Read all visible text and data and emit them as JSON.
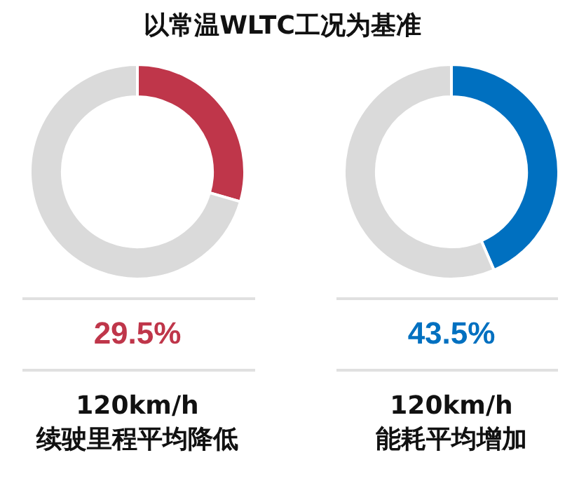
{
  "chart_data": [
    {
      "type": "donut",
      "title": "以常温WLTC工况为基准",
      "categories": [
        null,
        null
      ],
      "values": [
        29.5,
        70.5
      ],
      "colors": [
        "#bf364a",
        "#dadada"
      ],
      "annotations": [
        "29.5%"
      ],
      "xlabel": "120km/h\n续驶里程平均降低",
      "legend": false
    },
    {
      "type": "donut",
      "categories": [
        null,
        null
      ],
      "values": [
        43.5,
        56.5
      ],
      "colors": [
        "#0070c0",
        "#dadada"
      ],
      "annotations": [
        "43.5%"
      ],
      "xlabel": "120km/h\n能耗平均增加",
      "legend": false
    }
  ]
}
